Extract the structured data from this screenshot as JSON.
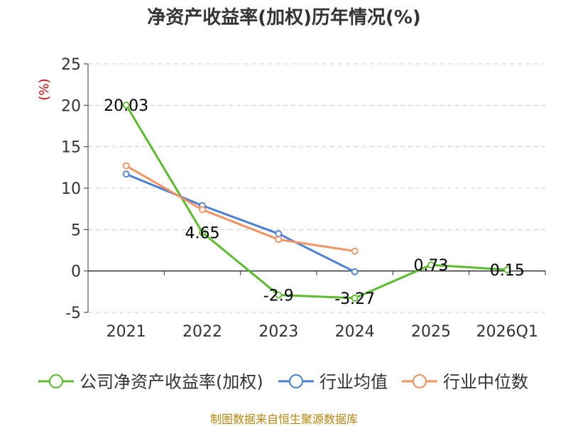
{
  "chart_data": {
    "type": "line",
    "title": "净资产收益率(加权)历年情况(%)",
    "ylabel": "(%)",
    "xlabel": "",
    "categories": [
      "2021",
      "2022",
      "2023",
      "2024",
      "2025",
      "2026Q1"
    ],
    "ylim": [
      -5,
      25
    ],
    "yticks": [
      25,
      20,
      15,
      10,
      5,
      0,
      -5
    ],
    "grid": true,
    "legend_position": "bottom",
    "series": [
      {
        "name": "公司净资产收益率(加权)",
        "color": "#5bbd2b",
        "values": [
          20.03,
          4.65,
          -2.9,
          -3.27,
          0.73,
          0.15
        ],
        "labels": [
          "20.03",
          "4.65",
          "-2.9",
          "-3.27",
          "0.73",
          "0.15"
        ]
      },
      {
        "name": "行业均值",
        "color": "#4a7fd6",
        "values": [
          11.7,
          7.9,
          4.5,
          -0.1,
          null,
          null
        ]
      },
      {
        "name": "行业中位数",
        "color": "#f59262",
        "values": [
          12.7,
          7.4,
          3.8,
          2.4,
          null,
          null
        ]
      }
    ],
    "source": "制图数据来自恒生聚源数据库"
  }
}
